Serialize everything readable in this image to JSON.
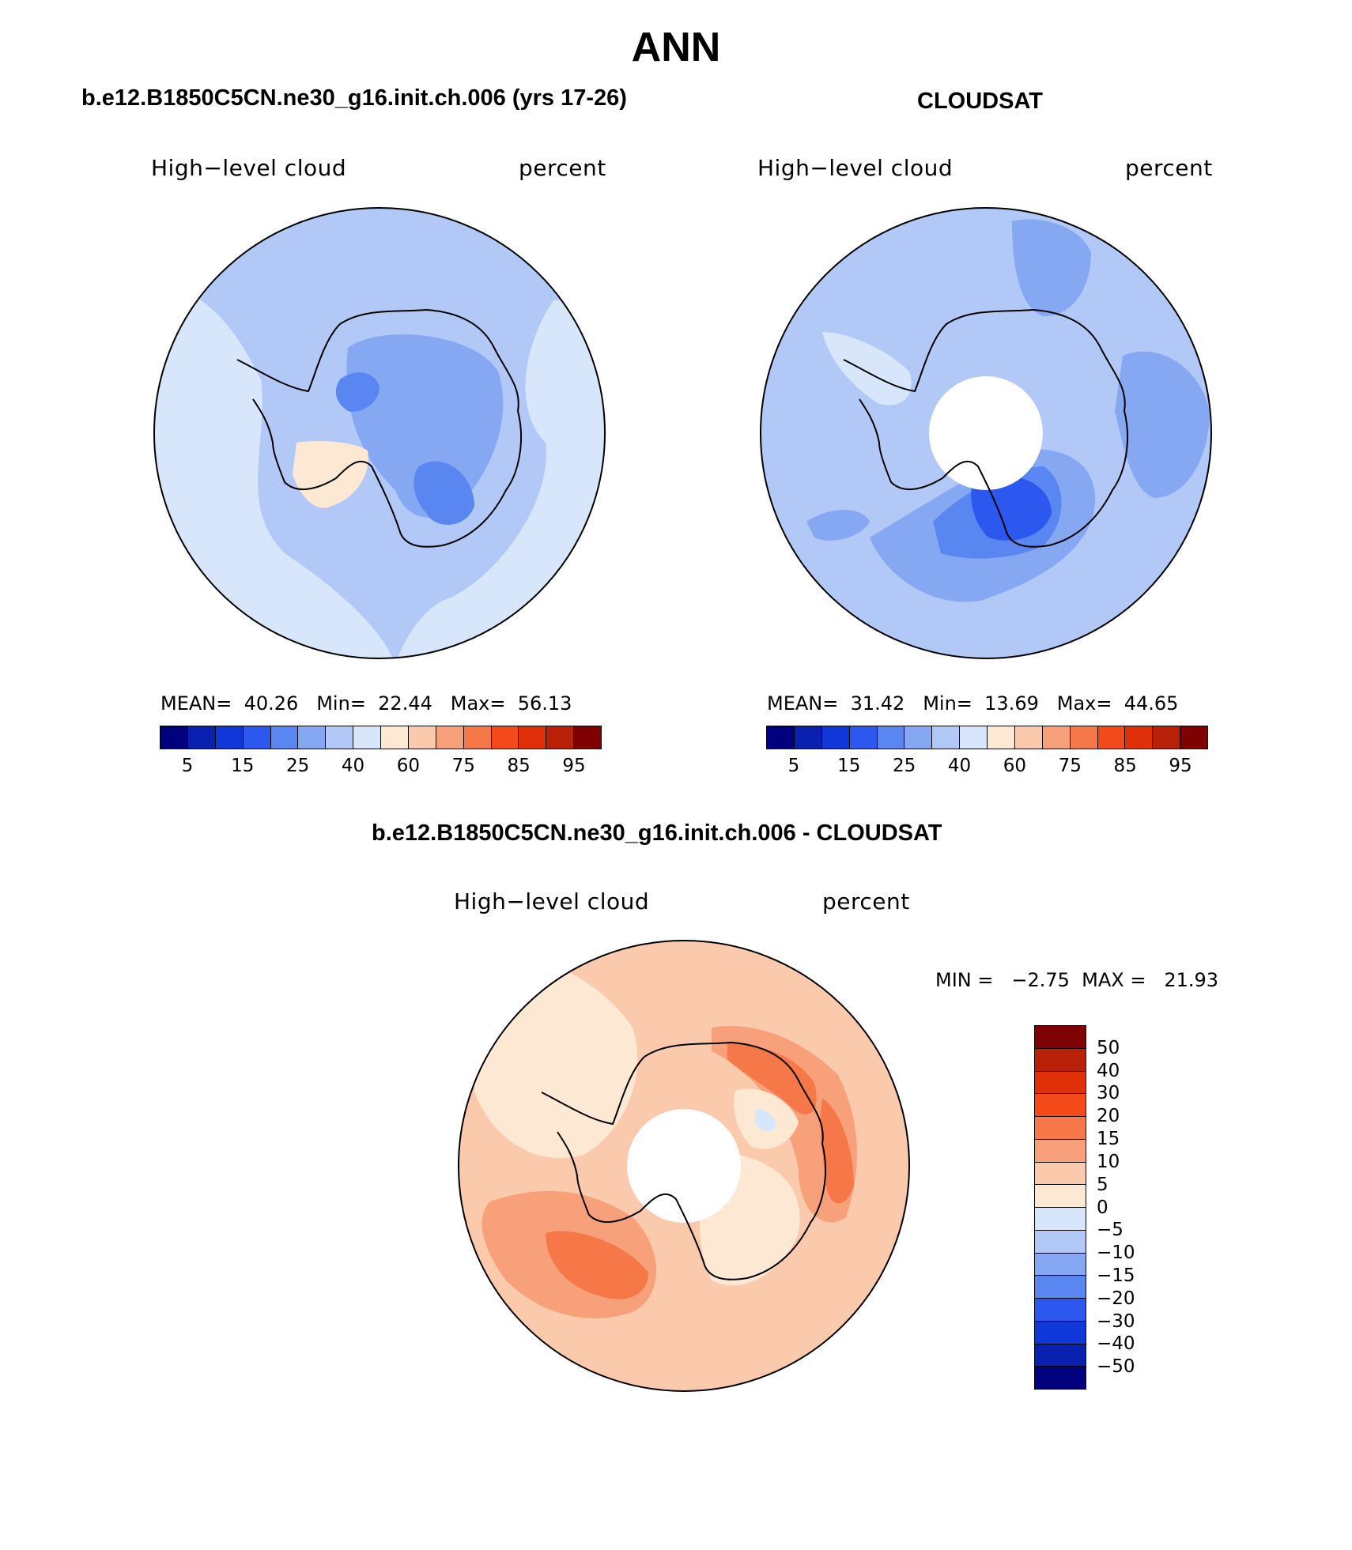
{
  "title": "ANN",
  "panels": {
    "test": {
      "title": "b.e12.B1850C5CN.ne30_g16.init.ch.006 (yrs 17-26)",
      "variable": "High−level cloud",
      "units": "percent",
      "stats": "MEAN=  40.26   Min=  22.44   Max=  56.13"
    },
    "obs": {
      "title": "CLOUDSAT",
      "variable": "High−level cloud",
      "units": "percent",
      "stats": "MEAN=  31.42   Min=  13.69   Max=  44.65"
    },
    "diff": {
      "title": "b.e12.B1850C5CN.ne30_g16.init.ch.006 - CLOUDSAT",
      "variable": "High−level cloud",
      "units": "percent",
      "stats": "MIN =   −2.75  MAX =   21.93"
    }
  },
  "colorbar_abs": {
    "colors": [
      "#00007f",
      "#0a20b0",
      "#1038d8",
      "#2c58f0",
      "#5a86f2",
      "#86a8f2",
      "#b2c8f6",
      "#d8e6fb",
      "#fde8d4",
      "#fbc9ac",
      "#f7a07a",
      "#f67848",
      "#f44a1a",
      "#e0300a",
      "#b82008",
      "#7f0000"
    ],
    "labels": [
      "5",
      "15",
      "25",
      "40",
      "60",
      "75",
      "85",
      "95"
    ]
  },
  "colorbar_diff": {
    "colors": [
      "#7f0000",
      "#b82008",
      "#e0300a",
      "#f44a1a",
      "#f67848",
      "#f7a07a",
      "#fbc9ac",
      "#fde8d4",
      "#d8e6fb",
      "#b2c8f6",
      "#86a8f2",
      "#5a86f2",
      "#2c58f0",
      "#1038d8",
      "#0a20b0",
      "#00007f"
    ],
    "labels": [
      "50",
      "40",
      "30",
      "20",
      "15",
      "10",
      "5",
      "0",
      "−5",
      "−10",
      "−15",
      "−20",
      "−30",
      "−40",
      "−50"
    ]
  }
}
